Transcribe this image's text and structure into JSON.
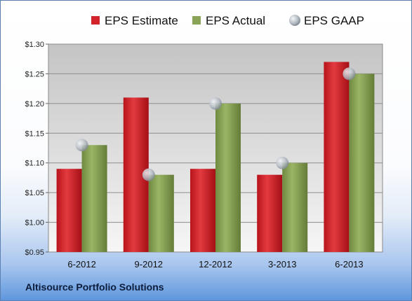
{
  "company": "Altisource Portfolio Solutions",
  "chart_data": {
    "type": "bar",
    "categories": [
      "6-2012",
      "9-2012",
      "12-2012",
      "3-2013",
      "6-2013"
    ],
    "series": [
      {
        "name": "EPS Estimate",
        "values": [
          1.09,
          1.21,
          1.09,
          1.08,
          1.27
        ],
        "color": "#d2232a",
        "kind": "bar"
      },
      {
        "name": "EPS Actual",
        "values": [
          1.13,
          1.08,
          1.2,
          1.1,
          1.25
        ],
        "color": "#8aa356",
        "kind": "bar"
      },
      {
        "name": "EPS GAAP",
        "values": [
          1.13,
          1.08,
          1.2,
          1.1,
          1.25
        ],
        "color": "#b8c0c8",
        "kind": "marker"
      }
    ],
    "ylim": [
      0.95,
      1.3
    ],
    "yticks": [
      "$1.30",
      "$1.25",
      "$1.20",
      "$1.15",
      "$1.10",
      "$1.05",
      "$1.00",
      "$0.95"
    ],
    "ytick_values": [
      1.3,
      1.25,
      1.2,
      1.15,
      1.1,
      1.05,
      1.0,
      0.95
    ],
    "grid": true,
    "legend_position": "top"
  }
}
